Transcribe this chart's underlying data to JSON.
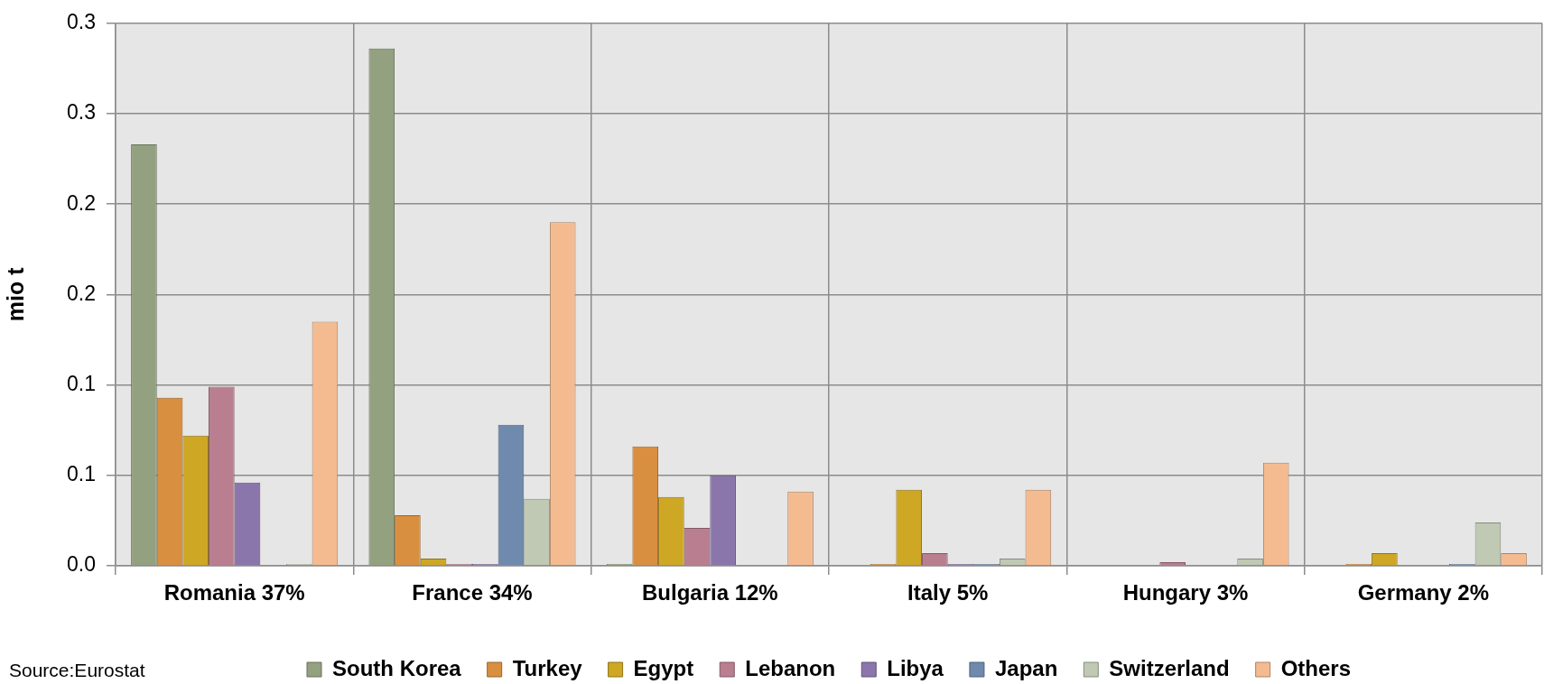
{
  "chart_data": {
    "type": "bar",
    "ylabel": "mio t",
    "categories": [
      "Romania 37%",
      "France 34%",
      "Bulgaria 12%",
      "Italy 5%",
      "Hungary 3%",
      "Germany 2%"
    ],
    "series": [
      {
        "name": "South Korea",
        "color": "#94a180",
        "values": [
          0.233,
          0.286,
          0.001,
          null,
          null,
          null
        ]
      },
      {
        "name": "Turkey",
        "color": "#d98f40",
        "values": [
          0.093,
          0.028,
          0.066,
          0.001,
          null,
          0.001
        ]
      },
      {
        "name": "Egypt",
        "color": "#cea724",
        "values": [
          0.072,
          0.004,
          0.038,
          0.042,
          null,
          0.007
        ]
      },
      {
        "name": "Lebanon",
        "color": "#b97f91",
        "values": [
          0.099,
          0.001,
          0.021,
          0.007,
          0.002,
          null
        ]
      },
      {
        "name": "Libya",
        "color": "#8b76ab",
        "values": [
          0.046,
          0.001,
          0.05,
          0.001,
          null,
          null
        ]
      },
      {
        "name": "Japan",
        "color": "#6f8aad",
        "values": [
          null,
          0.078,
          null,
          0.001,
          null,
          0.001
        ]
      },
      {
        "name": "Switzerland",
        "color": "#c0c9b3",
        "values": [
          0.001,
          0.037,
          null,
          0.004,
          0.004,
          0.024
        ]
      },
      {
        "name": "Others",
        "color": "#f5bb90",
        "values": [
          0.135,
          0.19,
          0.041,
          0.042,
          0.057,
          0.007
        ]
      }
    ],
    "ylim": [
      0,
      0.3
    ],
    "yticks": [
      {
        "value": 0,
        "label": "0.0"
      },
      {
        "value": 0.05,
        "label": "0.1"
      },
      0.1,
      {
        "value": 0.15,
        "label": "0.2"
      },
      0.2,
      {
        "value": 0.25,
        "label": "0.3"
      },
      0.3
    ],
    "grid": true,
    "legend": "bottom",
    "annotations": [
      "Source:Eurostat"
    ]
  }
}
